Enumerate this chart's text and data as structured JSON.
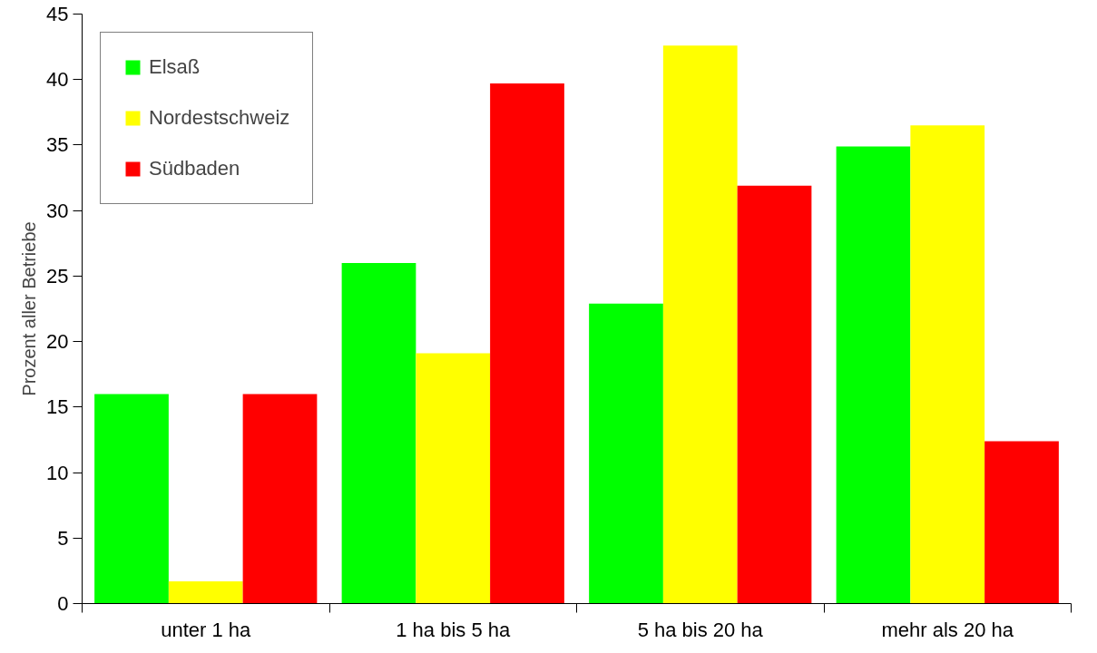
{
  "chart_data": {
    "type": "bar",
    "ylabel": "Prozent aller Betriebe",
    "categories": [
      "unter 1 ha",
      "1 ha bis 5 ha",
      "5 ha bis 20 ha",
      "mehr als 20 ha"
    ],
    "series": [
      {
        "name": "Elsaß",
        "color": "#00ff00",
        "values": [
          16,
          26,
          22.9,
          34.9
        ]
      },
      {
        "name": "Nordestschweiz",
        "color": "#ffff00",
        "values": [
          1.7,
          19.1,
          42.6,
          36.5
        ]
      },
      {
        "name": "Südbaden",
        "color": "#ff0000",
        "values": [
          16,
          39.7,
          31.9,
          12.4
        ]
      }
    ],
    "ylim": [
      0,
      45
    ],
    "yticks": [
      0,
      5,
      10,
      15,
      20,
      25,
      30,
      35,
      40,
      45
    ],
    "grid": false,
    "legend": "top left"
  }
}
